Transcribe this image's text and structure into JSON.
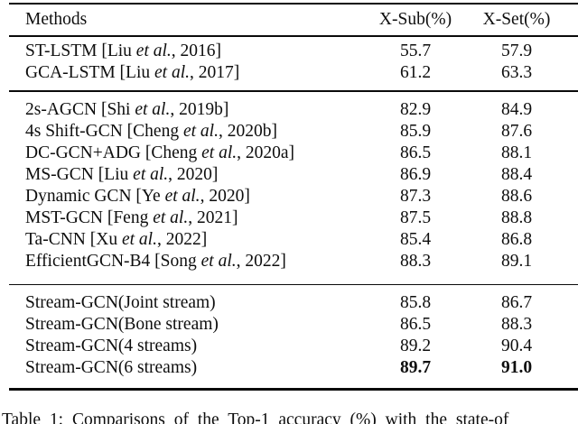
{
  "colors": {
    "background": "#ffffff",
    "text": "#0e0e0e",
    "rule": "#0a0a0a"
  },
  "table": {
    "columns": [
      "Methods",
      "X-Sub(%)",
      "X-Set(%)"
    ],
    "sections": [
      {
        "rows": [
          {
            "pre": "ST-LSTM [Liu ",
            "it": "et al.",
            "post": ", 2016]",
            "xsub": "55.7",
            "xset": "57.9"
          },
          {
            "pre": "GCA-LSTM [Liu ",
            "it": "et al.",
            "post": ", 2017]",
            "xsub": "61.2",
            "xset": "63.3"
          }
        ]
      },
      {
        "rows": [
          {
            "pre": "2s-AGCN [Shi ",
            "it": "et al.",
            "post": ", 2019b]",
            "xsub": "82.9",
            "xset": "84.9"
          },
          {
            "pre": "4s Shift-GCN [Cheng ",
            "it": "et al.",
            "post": ", 2020b]",
            "xsub": "85.9",
            "xset": "87.6"
          },
          {
            "pre": "DC-GCN+ADG [Cheng ",
            "it": "et al.",
            "post": ", 2020a]",
            "xsub": "86.5",
            "xset": "88.1"
          },
          {
            "pre": "MS-GCN [Liu ",
            "it": "et al.",
            "post": ", 2020]",
            "xsub": "86.9",
            "xset": "88.4"
          },
          {
            "pre": "Dynamic GCN [Ye ",
            "it": "et al.",
            "post": ", 2020]",
            "xsub": "87.3",
            "xset": "88.6"
          },
          {
            "pre": "MST-GCN [Feng ",
            "it": "et al.",
            "post": ", 2021]",
            "xsub": "87.5",
            "xset": "88.8"
          },
          {
            "pre": "Ta-CNN [Xu ",
            "it": "et al.",
            "post": ", 2022]",
            "xsub": "85.4",
            "xset": "86.8"
          },
          {
            "pre": "EfficientGCN-B4 [Song ",
            "it": "et al.",
            "post": ", 2022]",
            "xsub": "88.3",
            "xset": "89.1"
          }
        ]
      },
      {
        "rows": [
          {
            "pre": "Stream-GCN(Joint stream)",
            "it": "",
            "post": "",
            "xsub": "85.8",
            "xset": "86.7"
          },
          {
            "pre": "Stream-GCN(Bone stream)",
            "it": "",
            "post": "",
            "xsub": "86.5",
            "xset": "88.3"
          },
          {
            "pre": "Stream-GCN(4 streams)",
            "it": "",
            "post": "",
            "xsub": "89.2",
            "xset": "90.4"
          },
          {
            "pre": "Stream-GCN(6 streams)",
            "it": "",
            "post": "",
            "xsub": "89.7",
            "xset": "91.0"
          }
        ]
      }
    ]
  },
  "caption": {
    "text": "Table 1: Comparisons of the Top-1 accuracy (%) with the state-of"
  }
}
